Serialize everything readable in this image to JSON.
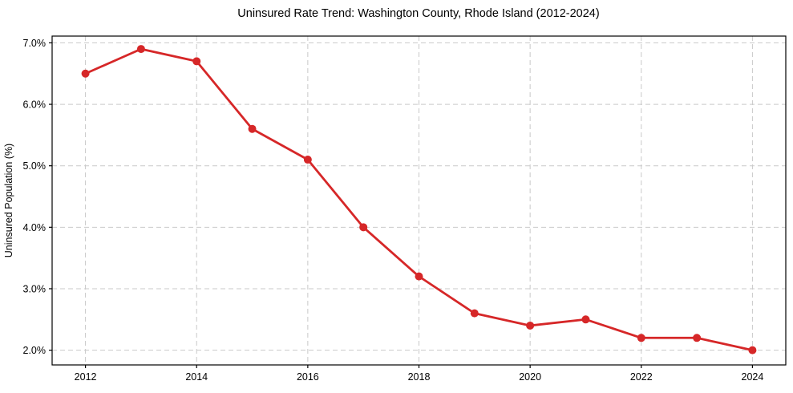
{
  "figure": {
    "background": "#ffffff"
  },
  "chart_data": {
    "type": "line",
    "title": "Uninsured Rate Trend: Washington County, Rhode Island (2012-2024)",
    "xlabel": "",
    "ylabel": "Uninsured Population (%)",
    "x": [
      2012,
      2013,
      2014,
      2015,
      2016,
      2017,
      2018,
      2019,
      2020,
      2021,
      2022,
      2023,
      2024
    ],
    "series": [
      {
        "name": "Uninsured Rate",
        "values": [
          6.5,
          6.9,
          6.7,
          5.6,
          5.1,
          4.0,
          3.2,
          2.6,
          2.4,
          2.5,
          2.2,
          2.2,
          2.0
        ],
        "color": "#d62728",
        "marker": "circle"
      }
    ],
    "xticks": [
      2012,
      2014,
      2016,
      2018,
      2020,
      2022,
      2024
    ],
    "xtick_labels": [
      "2012",
      "2014",
      "2016",
      "2018",
      "2020",
      "2022",
      "2024"
    ],
    "yticks": [
      2.0,
      3.0,
      4.0,
      5.0,
      6.0,
      7.0
    ],
    "ytick_labels": [
      "2.0%",
      "3.0%",
      "4.0%",
      "5.0%",
      "6.0%",
      "7.0%"
    ],
    "xlim": [
      2011.4,
      2024.6
    ],
    "ylim": [
      1.76,
      7.11
    ],
    "grid": true,
    "grid_style": "dashed",
    "legend_position": "none",
    "colors": {
      "line": "#d62728",
      "grid": "#c9c9c9",
      "spine": "#000000",
      "text": "#000000",
      "background": "#ffffff"
    }
  }
}
